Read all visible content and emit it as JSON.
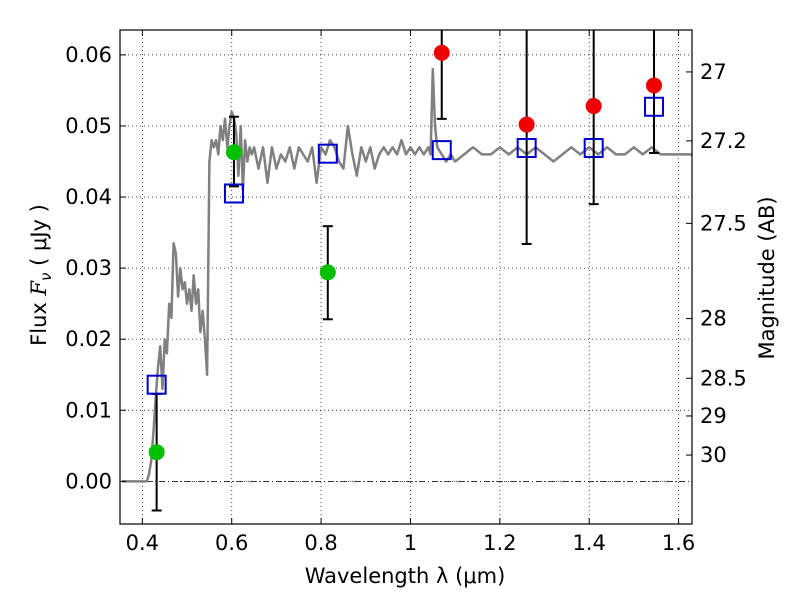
{
  "chart_data": {
    "type": "scatter",
    "xlabel": "Wavelength  λ (μm)",
    "ylabel": "Flux  F_ν  ( μJy )",
    "ylabel_parts": {
      "prefix": "Flux  ",
      "symbol": "F",
      "subscript": "ν",
      "suffix": "  ( μJy )"
    },
    "y2label": "Magnitude (AB)",
    "xlim": [
      0.35,
      1.63
    ],
    "ylim": [
      -0.006,
      0.0635
    ],
    "grid": true,
    "x_ticks": [
      0.4,
      0.6,
      0.8,
      1.0,
      1.2,
      1.4,
      1.6
    ],
    "x_tick_labels": [
      "0.4",
      "0.6",
      "0.8",
      "1",
      "1.2",
      "1.4",
      "1.6"
    ],
    "y_ticks": [
      0.0,
      0.01,
      0.02,
      0.03,
      0.04,
      0.05,
      0.06
    ],
    "y_tick_labels": [
      "0.00",
      "0.01",
      "0.02",
      "0.03",
      "0.04",
      "0.05",
      "0.06"
    ],
    "y2_ticks": [
      {
        "label": "27",
        "flux": 0.0576
      },
      {
        "label": "27.2",
        "flux": 0.0479
      },
      {
        "label": "27.5",
        "flux": 0.0363
      },
      {
        "label": "28",
        "flux": 0.0229
      },
      {
        "label": "28.5",
        "flux": 0.0145
      },
      {
        "label": "29",
        "flux": 0.0092
      },
      {
        "label": "30",
        "flux": 0.0037
      }
    ],
    "colors": {
      "model": "#808080",
      "green": "#00c000",
      "red": "#ee0000",
      "square": "#0000cc",
      "errorbar": "#000000"
    },
    "model_spectrum": {
      "x": [
        0.355,
        0.41,
        0.415,
        0.42,
        0.425,
        0.43,
        0.435,
        0.44,
        0.445,
        0.45,
        0.455,
        0.46,
        0.465,
        0.47,
        0.475,
        0.48,
        0.485,
        0.49,
        0.495,
        0.5,
        0.505,
        0.51,
        0.515,
        0.52,
        0.525,
        0.53,
        0.535,
        0.54,
        0.545,
        0.55,
        0.555,
        0.56,
        0.565,
        0.57,
        0.575,
        0.58,
        0.585,
        0.59,
        0.595,
        0.6,
        0.605,
        0.61,
        0.615,
        0.62,
        0.625,
        0.63,
        0.635,
        0.64,
        0.645,
        0.65,
        0.66,
        0.67,
        0.68,
        0.69,
        0.7,
        0.71,
        0.72,
        0.73,
        0.74,
        0.75,
        0.76,
        0.77,
        0.78,
        0.79,
        0.8,
        0.81,
        0.82,
        0.83,
        0.84,
        0.85,
        0.86,
        0.87,
        0.88,
        0.89,
        0.9,
        0.91,
        0.92,
        0.93,
        0.94,
        0.95,
        0.96,
        0.97,
        0.98,
        0.99,
        1.0,
        1.01,
        1.02,
        1.03,
        1.04,
        1.045,
        1.05,
        1.055,
        1.06,
        1.07,
        1.08,
        1.09,
        1.1,
        1.12,
        1.14,
        1.16,
        1.18,
        1.2,
        1.22,
        1.24,
        1.26,
        1.28,
        1.3,
        1.32,
        1.34,
        1.36,
        1.38,
        1.4,
        1.42,
        1.44,
        1.46,
        1.48,
        1.5,
        1.52,
        1.54,
        1.56,
        1.58,
        1.6,
        1.62,
        1.63
      ],
      "y": [
        0.0,
        0.0,
        0.001,
        0.003,
        0.007,
        0.012,
        0.016,
        0.019,
        0.013,
        0.02,
        0.018,
        0.025,
        0.023,
        0.0335,
        0.032,
        0.026,
        0.03,
        0.027,
        0.028,
        0.025,
        0.027,
        0.024,
        0.029,
        0.025,
        0.027,
        0.021,
        0.024,
        0.02,
        0.015,
        0.045,
        0.048,
        0.047,
        0.048,
        0.046,
        0.05,
        0.048,
        0.051,
        0.047,
        0.05,
        0.052,
        0.051,
        0.049,
        0.043,
        0.05,
        0.041,
        0.048,
        0.045,
        0.047,
        0.046,
        0.047,
        0.044,
        0.047,
        0.042,
        0.047,
        0.044,
        0.046,
        0.045,
        0.047,
        0.044,
        0.047,
        0.046,
        0.045,
        0.047,
        0.042,
        0.047,
        0.046,
        0.048,
        0.047,
        0.045,
        0.044,
        0.05,
        0.046,
        0.043,
        0.047,
        0.045,
        0.047,
        0.044,
        0.046,
        0.047,
        0.046,
        0.047,
        0.046,
        0.048,
        0.046,
        0.047,
        0.046,
        0.047,
        0.046,
        0.047,
        0.046,
        0.058,
        0.05,
        0.047,
        0.046,
        0.045,
        0.046,
        0.045,
        0.046,
        0.047,
        0.046,
        0.046,
        0.047,
        0.046,
        0.047,
        0.046,
        0.047,
        0.046,
        0.045,
        0.046,
        0.047,
        0.046,
        0.047,
        0.046,
        0.047,
        0.046,
        0.046,
        0.047,
        0.046,
        0.047,
        0.046,
        0.046,
        0.046,
        0.046,
        0.046
      ]
    },
    "series": [
      {
        "marker": "circle",
        "color": "green",
        "points": [
          {
            "x": 0.432,
            "y": 0.0041,
            "yerr_low": 0.0082,
            "yerr_high": 0.0082
          },
          {
            "x": 0.605,
            "y": 0.0463,
            "yerr_low": 0.0048,
            "yerr_high": 0.005
          },
          {
            "x": 0.815,
            "y": 0.0294,
            "yerr_low": 0.0066,
            "yerr_high": 0.0065
          }
        ]
      },
      {
        "marker": "circle",
        "color": "red",
        "points": [
          {
            "x": 1.07,
            "y": 0.0603,
            "yerr_low": 0.0093,
            "yerr_high": 0.0075
          },
          {
            "x": 1.26,
            "y": 0.0502,
            "yerr_low": 0.0168,
            "yerr_high": 0.0185
          },
          {
            "x": 1.41,
            "y": 0.0528,
            "yerr_low": 0.0138,
            "yerr_high": 0.0165
          },
          {
            "x": 1.545,
            "y": 0.0557,
            "yerr_low": 0.0095,
            "yerr_high": 0.0115
          }
        ]
      },
      {
        "marker": "square",
        "color": "square",
        "points": [
          {
            "x": 0.432,
            "y": 0.0136
          },
          {
            "x": 0.605,
            "y": 0.0405
          },
          {
            "x": 0.815,
            "y": 0.0461
          },
          {
            "x": 1.07,
            "y": 0.0466
          },
          {
            "x": 1.26,
            "y": 0.0469
          },
          {
            "x": 1.41,
            "y": 0.0469
          },
          {
            "x": 1.545,
            "y": 0.0527
          }
        ]
      }
    ]
  }
}
